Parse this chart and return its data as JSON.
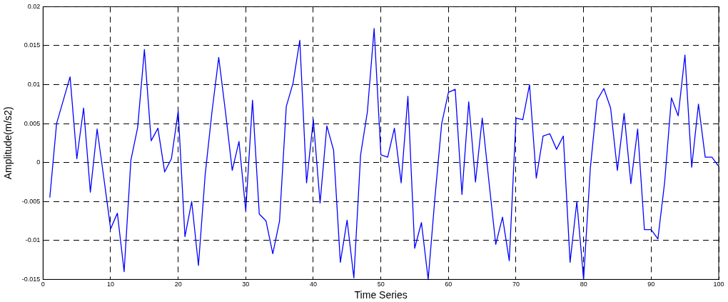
{
  "chart_data": {
    "type": "line",
    "xlabel": "Time Series",
    "ylabel": "Amplitude(m/s2)",
    "x": [
      1,
      2,
      3,
      4,
      5,
      6,
      7,
      8,
      9,
      10,
      11,
      12,
      13,
      14,
      15,
      16,
      17,
      18,
      19,
      20,
      21,
      22,
      23,
      24,
      25,
      26,
      27,
      28,
      29,
      30,
      31,
      32,
      33,
      34,
      35,
      36,
      37,
      38,
      39,
      40,
      41,
      42,
      43,
      44,
      45,
      46,
      47,
      48,
      49,
      50,
      51,
      52,
      53,
      54,
      55,
      56,
      57,
      58,
      59,
      60,
      61,
      62,
      63,
      64,
      65,
      66,
      67,
      68,
      69,
      70,
      71,
      72,
      73,
      74,
      75,
      76,
      77,
      78,
      79,
      80,
      81,
      82,
      83,
      84,
      85,
      86,
      87,
      88,
      89,
      90,
      91,
      92,
      93,
      94,
      95,
      96,
      97,
      98,
      99,
      100
    ],
    "series": [
      {
        "color": "#0000ff",
        "values": [
          -0.0045,
          0.005,
          0.008,
          0.011,
          0.0005,
          0.007,
          -0.0038,
          0.0043,
          -0.002,
          -0.0085,
          -0.0065,
          -0.014,
          0.0003,
          0.0045,
          0.0145,
          0.0028,
          0.0044,
          -0.0012,
          0.0005,
          0.0066,
          -0.0095,
          -0.005,
          -0.0132,
          -0.0015,
          0.0065,
          0.0135,
          0.0065,
          -0.001,
          0.0027,
          -0.0062,
          0.008,
          -0.0066,
          -0.0075,
          -0.0117,
          -0.0075,
          0.0072,
          0.0102,
          0.0157,
          -0.0026,
          0.0055,
          -0.0052,
          0.0047,
          0.0016,
          -0.0128,
          -0.0074,
          -0.0148,
          0.001,
          0.0065,
          0.0172,
          0.001,
          0.0007,
          0.0044,
          -0.0026,
          0.0085,
          -0.011,
          -0.0077,
          -0.015,
          -0.0045,
          0.005,
          0.009,
          0.0094,
          -0.0041,
          0.0078,
          -0.0025,
          0.0057,
          -0.0025,
          -0.0105,
          -0.007,
          -0.0126,
          0.0057,
          0.0055,
          0.01,
          -0.002,
          0.0034,
          0.0037,
          0.0017,
          0.0034,
          -0.0128,
          -0.005,
          -0.015,
          -0.0007,
          0.008,
          0.0095,
          0.007,
          -0.001,
          0.0063,
          -0.0027,
          0.0043,
          -0.0086,
          -0.0086,
          -0.0098,
          -0.0025,
          0.0083,
          0.006,
          0.0138,
          -0.0006,
          0.0075,
          0.0007,
          0.0007,
          -0.0005
        ]
      }
    ],
    "xlim": [
      0,
      100
    ],
    "xticks": [
      0,
      10,
      20,
      30,
      40,
      50,
      60,
      70,
      80,
      90,
      100
    ],
    "ylim": [
      -0.015,
      0.02
    ],
    "yticks": [
      -0.015,
      -0.01,
      -0.005,
      0,
      0.005,
      0.01,
      0.015,
      0.02
    ],
    "grid": true,
    "legend": false,
    "marker": "none",
    "line_style": "solid"
  }
}
